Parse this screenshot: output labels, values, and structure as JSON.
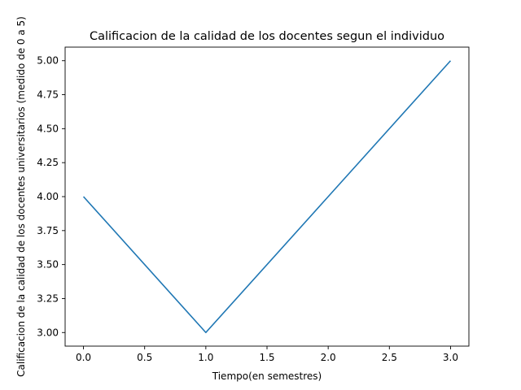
{
  "chart_data": {
    "type": "line",
    "title": "Calificacion de la calidad de los docentes segun el individuo",
    "xlabel": "Tiempo(en semestres)",
    "ylabel": "Calificacion de la calidad de los docentes universitarios (medido de 0 a 5)",
    "x": [
      0,
      1,
      2,
      3
    ],
    "series": [
      {
        "values": [
          4,
          3,
          4,
          5
        ],
        "color": "#1f77b4"
      }
    ],
    "xlim": [
      -0.15,
      3.15
    ],
    "ylim": [
      2.9,
      5.1
    ],
    "xticks": [
      "0.0",
      "0.5",
      "1.0",
      "1.5",
      "2.0",
      "2.5",
      "3.0"
    ],
    "yticks": [
      "3.00",
      "3.25",
      "3.50",
      "3.75",
      "4.00",
      "4.25",
      "4.50",
      "4.75",
      "5.00"
    ],
    "grid": false,
    "legend": "none"
  }
}
